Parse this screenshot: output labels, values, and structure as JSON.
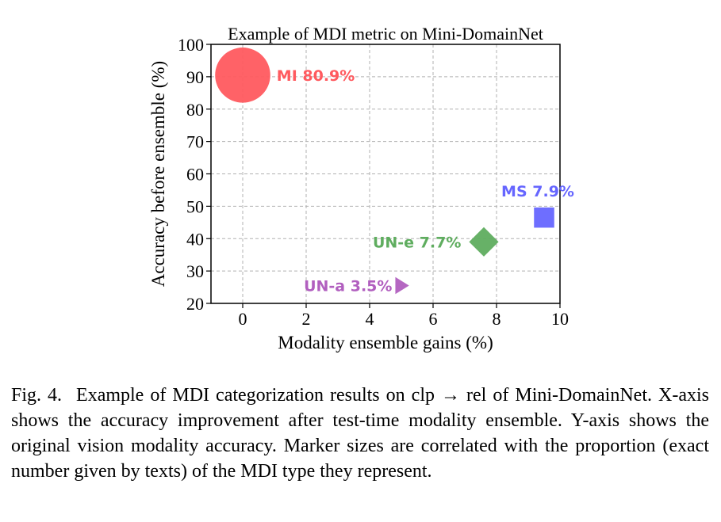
{
  "chart_data": {
    "type": "scatter",
    "title": "Example of MDI metric on Mini-DomainNet",
    "xlabel": "Modality ensemble gains (%)",
    "ylabel": "Accuracy before ensemble (%)",
    "xlim": [
      -1,
      10
    ],
    "ylim": [
      20,
      100
    ],
    "xticks": [
      0,
      2,
      4,
      6,
      8,
      10
    ],
    "yticks": [
      20,
      30,
      40,
      50,
      60,
      70,
      80,
      90,
      100
    ],
    "grid": true,
    "points": [
      {
        "label": "MI 80.9%",
        "x": 0.0,
        "y": 90.5,
        "proportion": 80.9,
        "marker": "circle",
        "color": "#ff5a5f"
      },
      {
        "label": "MS 7.9%",
        "x": 9.5,
        "y": 46.5,
        "proportion": 7.9,
        "marker": "square",
        "color": "#6666ff"
      },
      {
        "label": "UN-e 7.7%",
        "x": 7.6,
        "y": 39.0,
        "proportion": 7.7,
        "marker": "diamond",
        "color": "#5fad5f"
      },
      {
        "label": "UN-a 3.5%",
        "x": 5.0,
        "y": 25.5,
        "proportion": 3.5,
        "marker": "triangle-right",
        "color": "#b15fbf"
      }
    ]
  },
  "caption": {
    "figure_number": "Fig. 4.",
    "text": "Example of MDI categorization results on clp → rel of Mini-DomainNet. X-axis shows the accuracy improvement after test-time modality ensemble. Y-axis shows the original vision modality accuracy. Marker sizes are correlated with the proportion (exact number given by texts) of the MDI type they represent."
  }
}
